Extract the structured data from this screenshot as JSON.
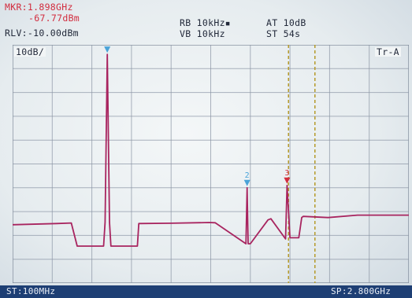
{
  "header": {
    "marker_freq": "MKR:1.898GHz",
    "marker_level": "-67.77dBm",
    "ref_level": "RLV:-10.00dBm",
    "rbw": "RB 10kHz▪",
    "vbw": "VB 10kHz",
    "attenuation": "AT 10dB",
    "sweep_time": "ST 54s"
  },
  "display": {
    "scale": "10dB/",
    "trace_mode": "Tr-A",
    "markers": [
      "1",
      "2",
      "3"
    ]
  },
  "footer": {
    "start": "ST:100MHz",
    "stop": "SP:2.800GHz"
  },
  "colors": {
    "trace": "#a8245f",
    "marker_blue": "#4aa3d8",
    "marker_red": "#d22d3f",
    "grid": "#8a94a4",
    "cursor_line": "#b59a2a"
  },
  "chart_data": {
    "type": "line",
    "x_unit": "GHz",
    "y_unit": "dBm",
    "xlim": [
      0.1,
      2.8
    ],
    "ylim": [
      -110,
      -10
    ],
    "ref_level": -10,
    "scale_per_div": 10,
    "x": [
      0.1,
      0.4,
      0.5,
      0.54,
      0.72,
      0.73,
      0.745,
      0.76,
      0.77,
      0.95,
      0.96,
      1.18,
      1.44,
      1.48,
      1.69,
      1.698,
      1.705,
      1.72,
      1.84,
      1.86,
      1.96,
      1.97,
      1.99,
      2.05,
      2.07,
      2.08,
      2.25,
      2.45,
      2.8
    ],
    "y": [
      -85.5,
      -85.0,
      -84.8,
      -94.5,
      -94.5,
      -84.5,
      -14.0,
      -84.5,
      -94.5,
      -94.5,
      -85.0,
      -84.9,
      -84.6,
      -84.7,
      -93.5,
      -70.0,
      -93.5,
      -93.5,
      -83.5,
      -83.0,
      -91.5,
      -69.0,
      -91.0,
      -91.0,
      -82.5,
      -82.0,
      -82.5,
      -81.5,
      -81.5
    ],
    "markers": [
      {
        "label": "1",
        "x": 0.745,
        "y": -14.0
      },
      {
        "label": "2",
        "x": 1.698,
        "y": -70.0
      },
      {
        "label": "3",
        "x": 1.97,
        "y": -69.0
      }
    ],
    "cursor_lines": [
      1.98,
      2.16
    ],
    "grid": true
  }
}
